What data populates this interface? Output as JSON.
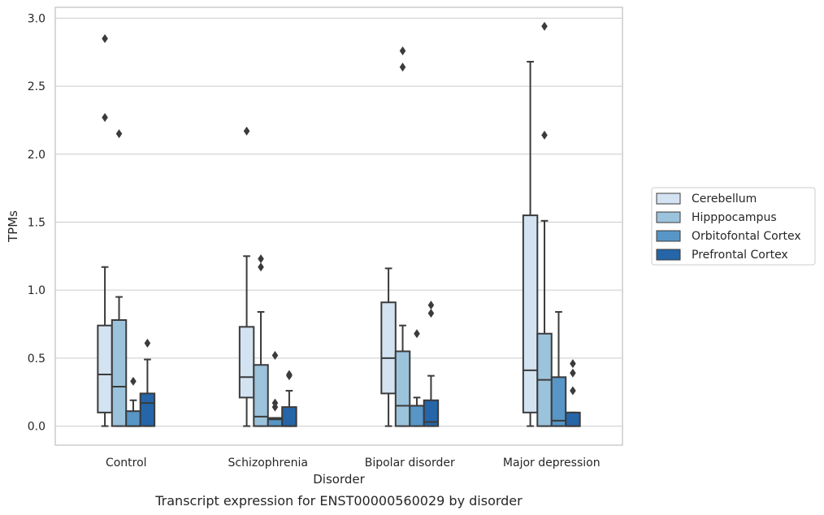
{
  "chart_data": {
    "type": "box",
    "xlabel": "Disorder",
    "ylabel": "TPMs",
    "caption": "Transcript expression for ENST00000560029 by disorder",
    "ylim": [
      -0.14,
      3.08
    ],
    "yticks": [
      "0.0",
      "0.5",
      "1.0",
      "1.5",
      "2.0",
      "2.5",
      "3.0"
    ],
    "grid": true,
    "legend_position": "right",
    "categories": [
      "Control",
      "Schizophrenia",
      "Bipolar disorder",
      "Major depression"
    ],
    "series": [
      {
        "name": "Cerebellum",
        "color": "#d3e3f2",
        "boxes": [
          {
            "whislo": 0.0,
            "q1": 0.1,
            "med": 0.38,
            "q3": 0.74,
            "whishi": 1.17,
            "fliers": [
              2.27,
              2.85
            ]
          },
          {
            "whislo": 0.0,
            "q1": 0.21,
            "med": 0.36,
            "q3": 0.73,
            "whishi": 1.25,
            "fliers": [
              2.17
            ]
          },
          {
            "whislo": 0.0,
            "q1": 0.24,
            "med": 0.5,
            "q3": 0.91,
            "whishi": 1.16,
            "fliers": []
          },
          {
            "whislo": 0.0,
            "q1": 0.1,
            "med": 0.41,
            "q3": 1.55,
            "whishi": 2.68,
            "fliers": []
          }
        ]
      },
      {
        "name": "Hipppocampus",
        "color": "#9cc3dc",
        "boxes": [
          {
            "whislo": 0.0,
            "q1": 0.0,
            "med": 0.29,
            "q3": 0.78,
            "whishi": 0.95,
            "fliers": [
              2.15
            ]
          },
          {
            "whislo": 0.0,
            "q1": 0.0,
            "med": 0.07,
            "q3": 0.45,
            "whishi": 0.84,
            "fliers": [
              1.17,
              1.23
            ]
          },
          {
            "whislo": 0.0,
            "q1": 0.0,
            "med": 0.15,
            "q3": 0.55,
            "whishi": 0.74,
            "fliers": [
              2.64,
              2.76
            ]
          },
          {
            "whislo": 0.0,
            "q1": 0.0,
            "med": 0.34,
            "q3": 0.68,
            "whishi": 1.51,
            "fliers": [
              2.14,
              2.94
            ]
          }
        ]
      },
      {
        "name": "Orbitofontal Cortex",
        "color": "#5796c6",
        "boxes": [
          {
            "whislo": 0.0,
            "q1": 0.0,
            "med": 0.0,
            "q3": 0.11,
            "whishi": 0.19,
            "fliers": [
              0.33
            ]
          },
          {
            "whislo": 0.0,
            "q1": 0.0,
            "med": 0.05,
            "q3": 0.06,
            "whishi": 0.06,
            "fliers": [
              0.14,
              0.17,
              0.52
            ]
          },
          {
            "whislo": 0.0,
            "q1": 0.0,
            "med": 0.15,
            "q3": 0.15,
            "whishi": 0.21,
            "fliers": [
              0.68
            ]
          },
          {
            "whislo": 0.0,
            "q1": 0.0,
            "med": 0.04,
            "q3": 0.36,
            "whishi": 0.84,
            "fliers": []
          }
        ]
      },
      {
        "name": "Prefrontal Cortex",
        "color": "#2565a8",
        "boxes": [
          {
            "whislo": 0.0,
            "q1": 0.0,
            "med": 0.17,
            "q3": 0.24,
            "whishi": 0.49,
            "fliers": [
              0.61
            ]
          },
          {
            "whislo": 0.0,
            "q1": 0.0,
            "med": 0.0,
            "q3": 0.14,
            "whishi": 0.26,
            "fliers": [
              0.37,
              0.38
            ]
          },
          {
            "whislo": 0.0,
            "q1": 0.0,
            "med": 0.03,
            "q3": 0.19,
            "whishi": 0.37,
            "fliers": [
              0.83,
              0.89
            ]
          },
          {
            "whislo": 0.0,
            "q1": 0.0,
            "med": 0.0,
            "q3": 0.1,
            "whishi": 0.1,
            "fliers": [
              0.26,
              0.39,
              0.46
            ]
          }
        ]
      }
    ]
  }
}
